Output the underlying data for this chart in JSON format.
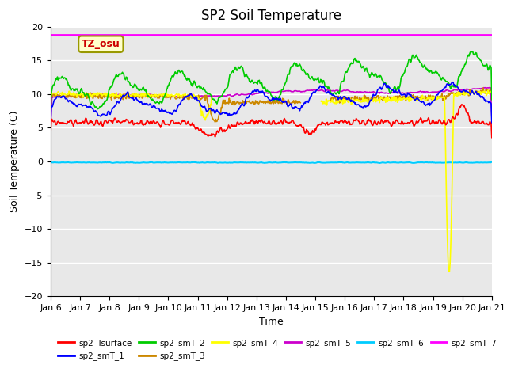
{
  "title": "SP2 Soil Temperature",
  "xlabel": "Time",
  "ylabel": "Soil Temperature (C)",
  "ylim": [
    -20,
    20
  ],
  "x_tick_labels": [
    "Jan 6",
    "Jan 7",
    "Jan 8",
    "Jan 9",
    "Jan 10",
    "Jan 11",
    "Jan 12",
    "Jan 13",
    "Jan 14",
    "Jan 15",
    "Jan 16",
    "Jan 17",
    "Jan 18",
    "Jan 19",
    "Jan 20",
    "Jan 21"
  ],
  "annotation_text": "TZ_osu",
  "annotation_color": "#cc0000",
  "annotation_box_color": "#ffffcc",
  "annotation_box_edge": "#999900",
  "series_colors": {
    "sp2_Tsurface": "#ff0000",
    "sp2_smT_1": "#0000ff",
    "sp2_smT_2": "#00cc00",
    "sp2_smT_3": "#cc8800",
    "sp2_smT_4": "#ffff00",
    "sp2_smT_5": "#cc00cc",
    "sp2_smT_6": "#00ccff",
    "sp2_smT_7": "#ff00ff"
  },
  "bg_color": "#e8e8e8",
  "grid_color": "#ffffff",
  "title_fontsize": 12,
  "label_fontsize": 9,
  "tick_fontsize": 8
}
